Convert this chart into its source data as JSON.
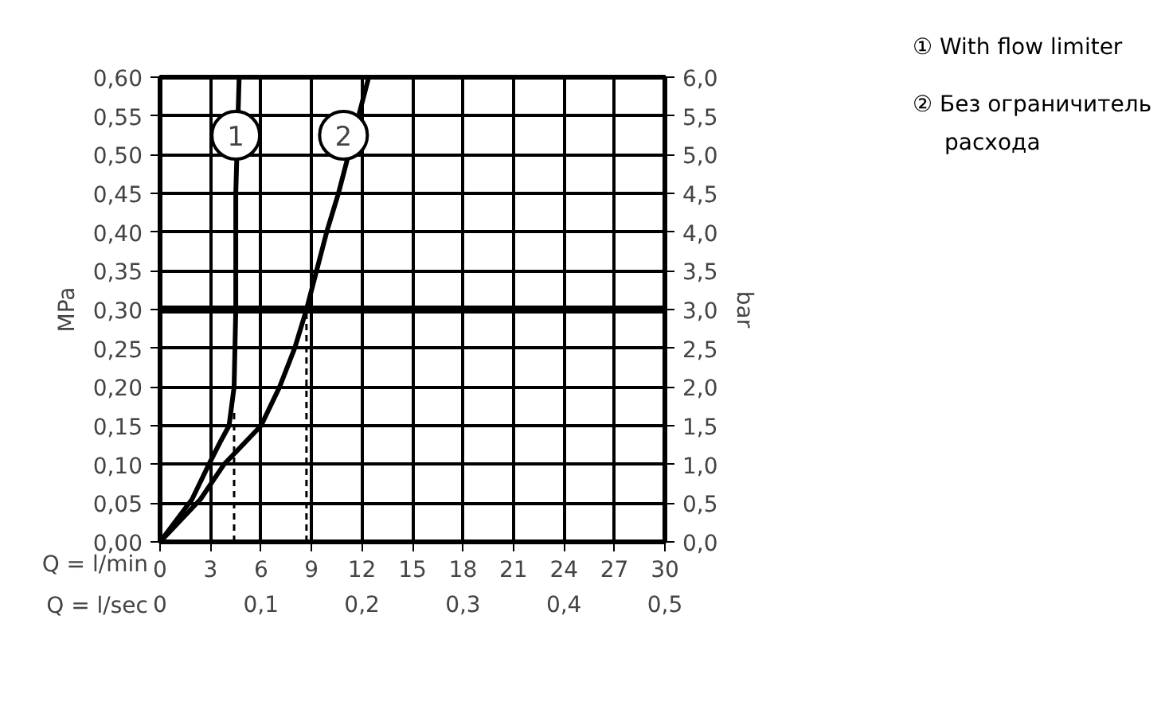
{
  "chart_data": {
    "type": "line",
    "xlabel": "Q = l/min",
    "x2label": "Q = l/sec",
    "ylabel": "MPa",
    "y2label": "bar",
    "xlim": [
      0,
      30
    ],
    "xticks": [
      0,
      3,
      6,
      9,
      12,
      15,
      18,
      21,
      24,
      27,
      30
    ],
    "x2lim": [
      0,
      0.5
    ],
    "x2ticks": [
      0,
      {
        "value": 0.1,
        "label": "0,1"
      },
      {
        "value": 0.2,
        "label": "0,2"
      },
      {
        "value": 0.3,
        "label": "0,3"
      },
      {
        "value": 0.4,
        "label": "0,4"
      },
      {
        "value": 0.5,
        "label": "0,5"
      }
    ],
    "ylim": [
      0,
      0.6
    ],
    "yticks": [
      {
        "value": 0,
        "label": "0,00"
      },
      {
        "value": 0.05,
        "label": "0,05"
      },
      {
        "value": 0.1,
        "label": "0,10"
      },
      {
        "value": 0.15,
        "label": "0,15"
      },
      {
        "value": 0.2,
        "label": "0,20"
      },
      {
        "value": 0.25,
        "label": "0,25"
      },
      {
        "value": 0.3,
        "label": "0,30"
      },
      {
        "value": 0.35,
        "label": "0,35"
      },
      {
        "value": 0.4,
        "label": "0,40"
      },
      {
        "value": 0.45,
        "label": "0,45"
      },
      {
        "value": 0.5,
        "label": "0,50"
      },
      {
        "value": 0.55,
        "label": "0,55"
      },
      {
        "value": 0.6,
        "label": "0,60"
      }
    ],
    "y2lim": [
      0,
      6
    ],
    "y2ticks": [
      {
        "value": 0,
        "label": "0,0"
      },
      {
        "value": 0.5,
        "label": "0,5"
      },
      {
        "value": 1,
        "label": "1,0"
      },
      {
        "value": 1.5,
        "label": "1,5"
      },
      {
        "value": 2,
        "label": "2,0"
      },
      {
        "value": 2.5,
        "label": "2,5"
      },
      {
        "value": 3,
        "label": "3,0"
      },
      {
        "value": 3.5,
        "label": "3,5"
      },
      {
        "value": 4,
        "label": "4,0"
      },
      {
        "value": 4.5,
        "label": "4,5"
      },
      {
        "value": 5,
        "label": "5,0"
      },
      {
        "value": 5.5,
        "label": "5,5"
      },
      {
        "value": 6,
        "label": "6,0"
      }
    ],
    "grid": true,
    "line_style": "solid",
    "series": [
      {
        "name": "① With flow limiter",
        "color": "#000000",
        "x": [
          0,
          1.9,
          2.9,
          3.6,
          4.1,
          4.4,
          4.5,
          4.5,
          4.5,
          4.7
        ],
        "values": [
          0,
          0.055,
          0.1,
          0.13,
          0.15,
          0.2,
          0.3,
          0.4,
          0.45,
          0.6
        ]
      },
      {
        "name": "② Без ограничитель расхода",
        "color": "#000000",
        "x": [
          0,
          2.4,
          3.8,
          6.0,
          7.1,
          8.0,
          8.7,
          9.9,
          10.6,
          12.4
        ],
        "values": [
          0,
          0.055,
          0.1,
          0.15,
          0.2,
          0.25,
          0.3,
          0.4,
          0.45,
          0.6
        ]
      },
      {
        "color": "#000000",
        "line_style": "dashed",
        "x": [
          4.4,
          4.4
        ],
        "values": [
          0,
          0.17
        ]
      },
      {
        "color": "#000000",
        "line_style": "dashed",
        "x": [
          8.7,
          8.7
        ],
        "values": [
          0,
          0.3
        ]
      }
    ],
    "ref_lines": [
      {
        "axis": "y",
        "value": 0.3,
        "color": "#000000"
      }
    ],
    "annotations": [
      {
        "text": "1",
        "x": 4.5,
        "y": 0.525
      },
      {
        "text": "2",
        "x": 10.9,
        "y": 0.525
      }
    ]
  }
}
